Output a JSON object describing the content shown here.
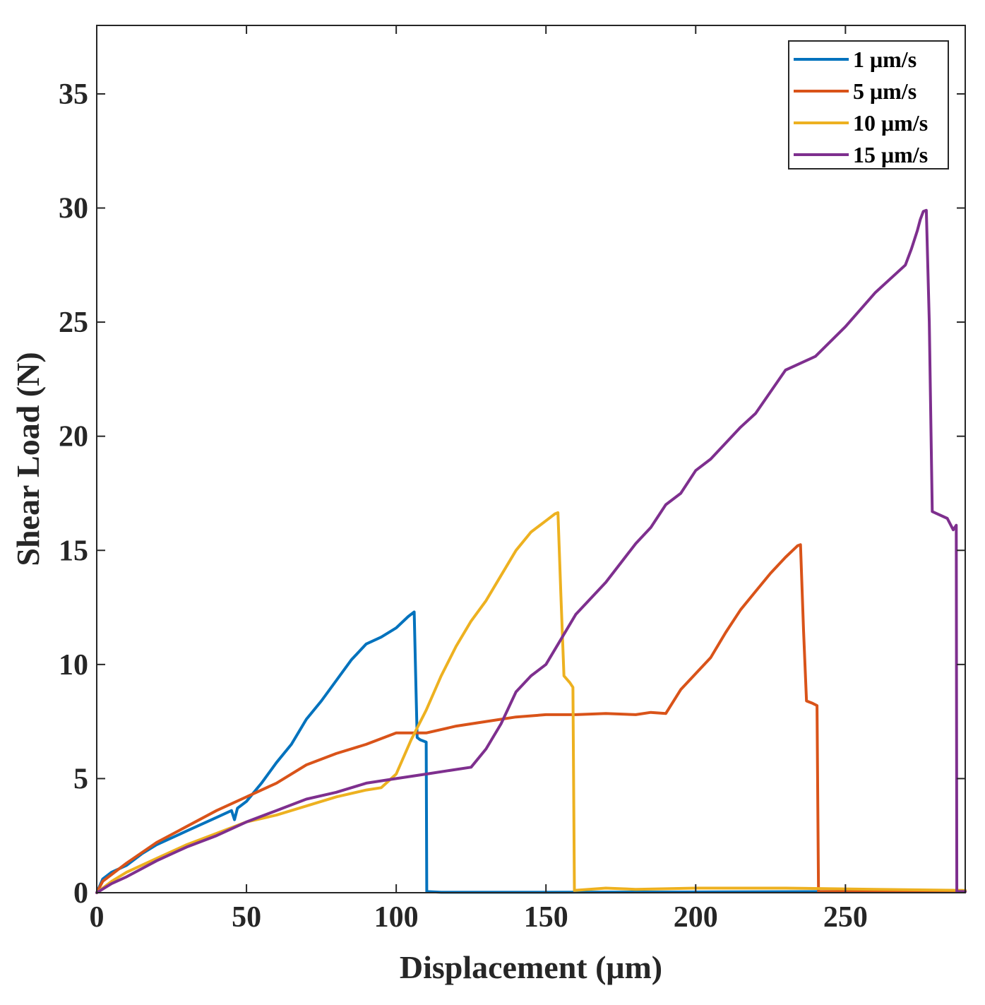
{
  "chart_data": {
    "type": "line",
    "title": "",
    "xlabel": "Displacement (μm)",
    "ylabel": "Shear Load (N)",
    "xlim": [
      0,
      290
    ],
    "ylim": [
      0,
      38
    ],
    "xticks": [
      0,
      50,
      100,
      150,
      200,
      250
    ],
    "yticks": [
      0,
      5,
      10,
      15,
      20,
      25,
      30,
      35
    ],
    "xtick_labels": [
      "0",
      "50",
      "100",
      "150",
      "200",
      "250"
    ],
    "ytick_labels": [
      "0",
      "5",
      "10",
      "15",
      "20",
      "25",
      "30",
      "35"
    ],
    "grid": false,
    "legend_position": "top-right",
    "series": [
      {
        "name": "1 μm/s",
        "color": "#0072BD",
        "x": [
          0,
          2,
          5,
          10,
          15,
          20,
          30,
          40,
          45,
          46,
          47,
          50,
          55,
          60,
          65,
          70,
          75,
          80,
          85,
          90,
          95,
          100,
          104,
          106,
          106.5,
          107,
          108,
          110,
          110.2,
          115,
          150,
          200,
          250,
          290
        ],
        "y": [
          0,
          0.6,
          0.9,
          1.2,
          1.7,
          2.1,
          2.7,
          3.3,
          3.6,
          3.2,
          3.7,
          4.0,
          4.8,
          5.7,
          6.5,
          7.6,
          8.4,
          9.3,
          10.2,
          10.9,
          11.2,
          11.6,
          12.1,
          12.3,
          9.5,
          6.8,
          6.7,
          6.6,
          0.05,
          0.02,
          0.02,
          0.03,
          0.05,
          0.05
        ]
      },
      {
        "name": "5 μm/s",
        "color": "#D95319",
        "x": [
          0,
          2,
          5,
          10,
          20,
          30,
          40,
          50,
          60,
          70,
          80,
          90,
          100,
          110,
          120,
          130,
          140,
          150,
          160,
          170,
          180,
          185,
          190,
          195,
          200,
          205,
          210,
          215,
          220,
          225,
          230,
          234,
          235,
          236,
          237,
          239,
          240.5,
          241,
          250,
          270,
          290
        ],
        "y": [
          0,
          0.5,
          0.8,
          1.3,
          2.2,
          2.9,
          3.6,
          4.2,
          4.8,
          5.6,
          6.1,
          6.5,
          7.0,
          7.0,
          7.3,
          7.5,
          7.7,
          7.8,
          7.8,
          7.85,
          7.8,
          7.9,
          7.85,
          8.9,
          9.6,
          10.3,
          11.4,
          12.4,
          13.2,
          14.0,
          14.7,
          15.2,
          15.25,
          11.5,
          8.4,
          8.3,
          8.2,
          0.05,
          0.05,
          0.05,
          0.05
        ]
      },
      {
        "name": "10 μm/s",
        "color": "#EDB120",
        "x": [
          0,
          5,
          10,
          20,
          30,
          40,
          50,
          60,
          70,
          80,
          90,
          95,
          100,
          105,
          110,
          115,
          120,
          125,
          130,
          135,
          140,
          145,
          150,
          153,
          154,
          155,
          156,
          158,
          159,
          159.5,
          170,
          180,
          200,
          230,
          260,
          290
        ],
        "y": [
          0,
          0.5,
          0.9,
          1.5,
          2.1,
          2.6,
          3.1,
          3.4,
          3.8,
          4.2,
          4.5,
          4.6,
          5.2,
          6.7,
          8.0,
          9.5,
          10.8,
          11.9,
          12.8,
          13.9,
          15.0,
          15.8,
          16.3,
          16.6,
          16.65,
          13.0,
          9.5,
          9.2,
          9.0,
          0.1,
          0.2,
          0.15,
          0.2,
          0.2,
          0.15,
          0.1
        ]
      },
      {
        "name": "15 μm/s",
        "color": "#7E2F8E",
        "x": [
          0,
          5,
          10,
          20,
          30,
          40,
          50,
          60,
          70,
          80,
          90,
          100,
          110,
          120,
          125,
          130,
          135,
          140,
          145,
          150,
          155,
          160,
          170,
          180,
          185,
          190,
          195,
          200,
          205,
          210,
          215,
          220,
          230,
          240,
          250,
          260,
          265,
          270,
          272,
          274,
          275,
          276,
          277,
          278,
          279,
          284,
          286,
          287,
          287.2,
          287.5,
          290
        ],
        "y": [
          0,
          0.4,
          0.7,
          1.4,
          2.0,
          2.5,
          3.1,
          3.6,
          4.1,
          4.4,
          4.8,
          5.0,
          5.2,
          5.4,
          5.5,
          6.3,
          7.4,
          8.8,
          9.5,
          10.0,
          11.1,
          12.2,
          13.6,
          15.3,
          16.0,
          17.0,
          17.5,
          18.5,
          19.0,
          19.7,
          20.4,
          21.0,
          22.9,
          23.5,
          24.8,
          26.3,
          26.9,
          27.5,
          28.2,
          29.0,
          29.5,
          29.85,
          29.9,
          25.0,
          16.7,
          16.4,
          15.9,
          16.1,
          0.05,
          0.05,
          0.05
        ]
      }
    ]
  }
}
